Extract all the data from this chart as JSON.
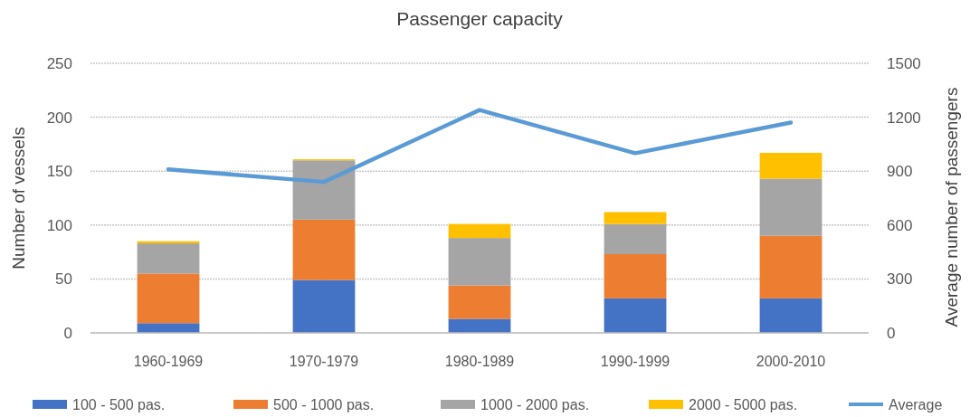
{
  "chart_data": {
    "type": "bar",
    "title": "Passenger capacity",
    "ylabel": "Number of vessels",
    "y2label": "Average number of passengers",
    "categories": [
      "1960-1969",
      "1970-1979",
      "1980-1989",
      "1990-1999",
      "2000-2010"
    ],
    "stacked": true,
    "series": [
      {
        "name": "100 - 500 pas.",
        "color": "#4472c4",
        "values": [
          9,
          49,
          13,
          32,
          32
        ]
      },
      {
        "name": "500 - 1000 pas.",
        "color": "#ed7d31",
        "values": [
          46,
          56,
          31,
          41,
          58
        ]
      },
      {
        "name": "1000 - 2000 pas.",
        "color": "#a5a5a5",
        "values": [
          28,
          55,
          44,
          28,
          53
        ]
      },
      {
        "name": "2000 - 5000 pas.",
        "color": "#ffc000",
        "values": [
          2,
          1,
          13,
          11,
          24
        ]
      },
      {
        "name": "Average",
        "type": "line",
        "axis": "y2",
        "color": "#5b9bd5",
        "values": [
          910,
          840,
          1240,
          1000,
          1170
        ]
      }
    ],
    "ylim": [
      0,
      250
    ],
    "yticks": [
      0,
      50,
      100,
      150,
      200,
      250
    ],
    "y2lim": [
      0,
      1500
    ],
    "y2ticks": [
      0,
      300,
      600,
      900,
      1200,
      1500
    ],
    "grid": "y",
    "legend": "bottom"
  }
}
